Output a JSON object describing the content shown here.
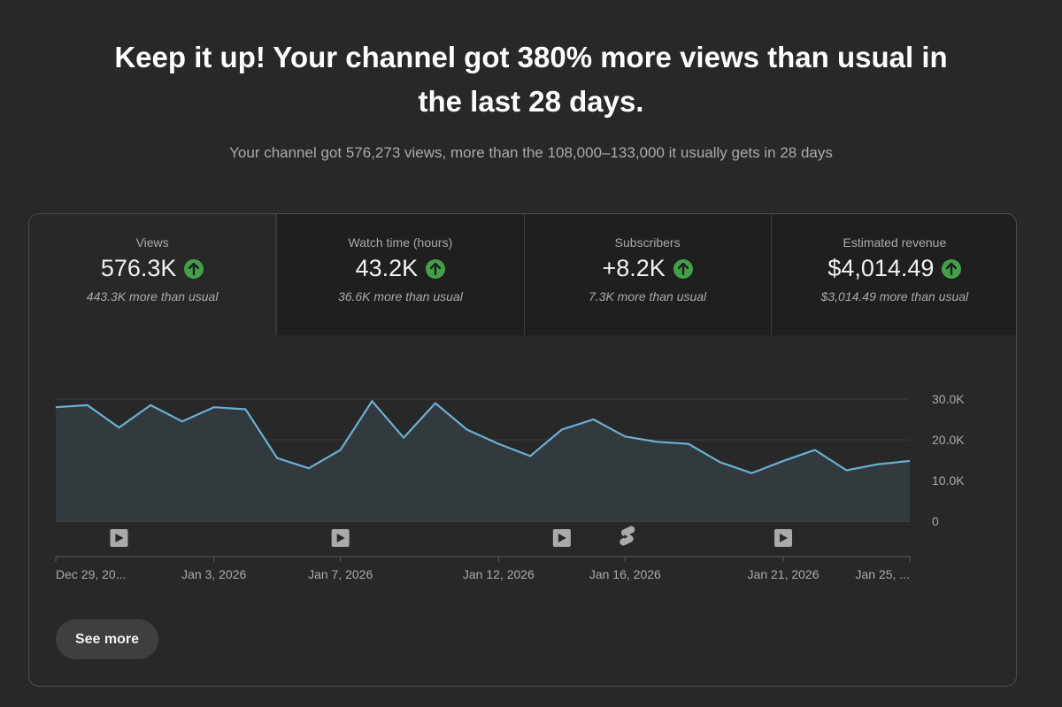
{
  "headline": {
    "line1": "Keep it up! Your channel got 380% more views than usual in",
    "line2": "the last 28 days."
  },
  "subline": "Your channel got 576,273 views, more than the 108,000–133,000 it usually gets in 28 days",
  "tabs": [
    {
      "label": "Views",
      "value": "576.3K",
      "note": "443.3K more than usual",
      "trend_icon": "arrow-up-icon",
      "selected": true
    },
    {
      "label": "Watch time (hours)",
      "value": "43.2K",
      "note": "36.6K more than usual",
      "trend_icon": "arrow-up-icon",
      "selected": false
    },
    {
      "label": "Subscribers",
      "value": "+8.2K",
      "note": "7.3K more than usual",
      "trend_icon": "arrow-up-icon",
      "selected": false
    },
    {
      "label": "Estimated revenue",
      "value": "$4,014.49",
      "note": "$3,014.49 more than usual",
      "trend_icon": "arrow-up-icon",
      "selected": false
    }
  ],
  "colors": {
    "background": "#282828",
    "line": "#6ab0d4",
    "trend_up": "#43a047"
  },
  "chart_data": {
    "type": "area",
    "x": [
      "Dec 29",
      "Dec 30",
      "Dec 31",
      "Jan 1",
      "Jan 2",
      "Jan 3",
      "Jan 4",
      "Jan 5",
      "Jan 6",
      "Jan 7",
      "Jan 8",
      "Jan 9",
      "Jan 10",
      "Jan 11",
      "Jan 12",
      "Jan 13",
      "Jan 14",
      "Jan 15",
      "Jan 16",
      "Jan 17",
      "Jan 18",
      "Jan 19",
      "Jan 20",
      "Jan 21",
      "Jan 22",
      "Jan 23",
      "Jan 24",
      "Jan 25"
    ],
    "values": [
      28000,
      28500,
      23000,
      28500,
      24500,
      28000,
      27500,
      15500,
      13000,
      17500,
      29500,
      20500,
      29000,
      22500,
      19000,
      16000,
      22500,
      25000,
      20800,
      19500,
      19000,
      14500,
      11800,
      14800,
      17500,
      12500,
      14000,
      14800
    ],
    "ylim": [
      0,
      30000
    ],
    "y_ticks": [
      "30.0K",
      "20.0K",
      "10.0K",
      "0"
    ],
    "y_tick_values": [
      30000,
      20000,
      10000,
      0
    ],
    "x_tick_labels": [
      {
        "label": "Dec 29, 20...",
        "index": 0
      },
      {
        "label": "Jan 3, 2026",
        "index": 5
      },
      {
        "label": "Jan 7, 2026",
        "index": 9
      },
      {
        "label": "Jan 12, 2026",
        "index": 14
      },
      {
        "label": "Jan 16, 2026",
        "index": 18
      },
      {
        "label": "Jan 21, 2026",
        "index": 23
      },
      {
        "label": "Jan 25, ...",
        "index": 27
      }
    ],
    "video_markers": [
      {
        "index": 2,
        "icon": "video-play-icon"
      },
      {
        "index": 9,
        "icon": "video-play-icon"
      },
      {
        "index": 16,
        "icon": "video-play-icon"
      },
      {
        "index": 18,
        "icon": "shorts-icon"
      },
      {
        "index": 23,
        "icon": "video-play-icon"
      }
    ],
    "grid": true
  },
  "see_more_label": "See more"
}
